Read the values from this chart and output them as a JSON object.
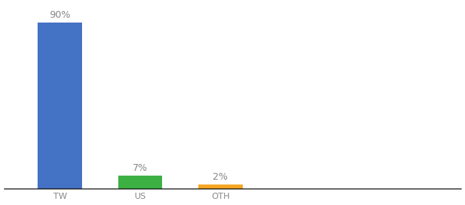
{
  "categories": [
    "TW",
    "US",
    "OTH"
  ],
  "values": [
    90,
    7,
    2
  ],
  "bar_colors": [
    "#4472c4",
    "#3cb043",
    "#f5a623"
  ],
  "label_texts": [
    "90%",
    "7%",
    "2%"
  ],
  "background_color": "#ffffff",
  "ylim": [
    0,
    100
  ],
  "bar_width": 0.55,
  "label_fontsize": 10,
  "tick_fontsize": 9,
  "tick_color": "#888888",
  "label_color": "#888888",
  "x_positions": [
    1,
    2,
    3
  ],
  "xlim": [
    0.3,
    6.0
  ]
}
